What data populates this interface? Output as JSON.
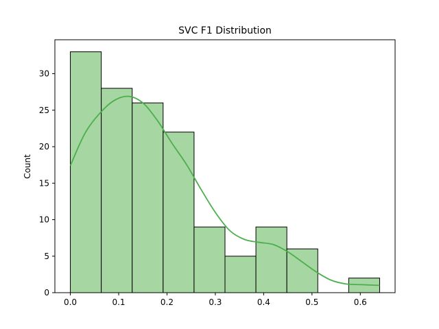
{
  "chart_data": {
    "type": "histogram",
    "title": "SVC F1 Distribution",
    "xlabel": "",
    "ylabel": "Count",
    "xlim": [
      -0.032,
      0.672
    ],
    "ylim": [
      0,
      34.65
    ],
    "xticks": [
      0.0,
      0.1,
      0.2,
      0.3,
      0.4,
      0.5,
      0.6
    ],
    "xtick_labels": [
      "0.0",
      "0.1",
      "0.2",
      "0.3",
      "0.4",
      "0.5",
      "0.6"
    ],
    "yticks": [
      0,
      5,
      10,
      15,
      20,
      25,
      30
    ],
    "ytick_labels": [
      "0",
      "5",
      "10",
      "15",
      "20",
      "25",
      "30"
    ],
    "bin_edges": [
      0.0,
      0.064,
      0.128,
      0.192,
      0.256,
      0.32,
      0.384,
      0.448,
      0.512,
      0.576,
      0.64
    ],
    "counts": [
      33,
      28,
      26,
      22,
      9,
      5,
      9,
      6,
      0,
      2
    ],
    "kde": {
      "x": [
        0.0,
        0.03,
        0.06,
        0.09,
        0.12,
        0.15,
        0.18,
        0.21,
        0.24,
        0.27,
        0.3,
        0.33,
        0.36,
        0.39,
        0.42,
        0.45,
        0.48,
        0.51,
        0.54,
        0.57,
        0.6,
        0.64
      ],
      "y": [
        17.4,
        21.8,
        24.5,
        26.3,
        26.9,
        26.0,
        23.6,
        20.5,
        17.6,
        14.2,
        11.0,
        8.5,
        7.3,
        6.9,
        6.6,
        5.6,
        4.2,
        2.8,
        1.7,
        1.2,
        1.1,
        1.0
      ]
    },
    "grid": false,
    "colors": {
      "bar_fill": "#a6d6a1",
      "bar_edge": "#000000",
      "kde_line": "#4cae4c"
    }
  }
}
